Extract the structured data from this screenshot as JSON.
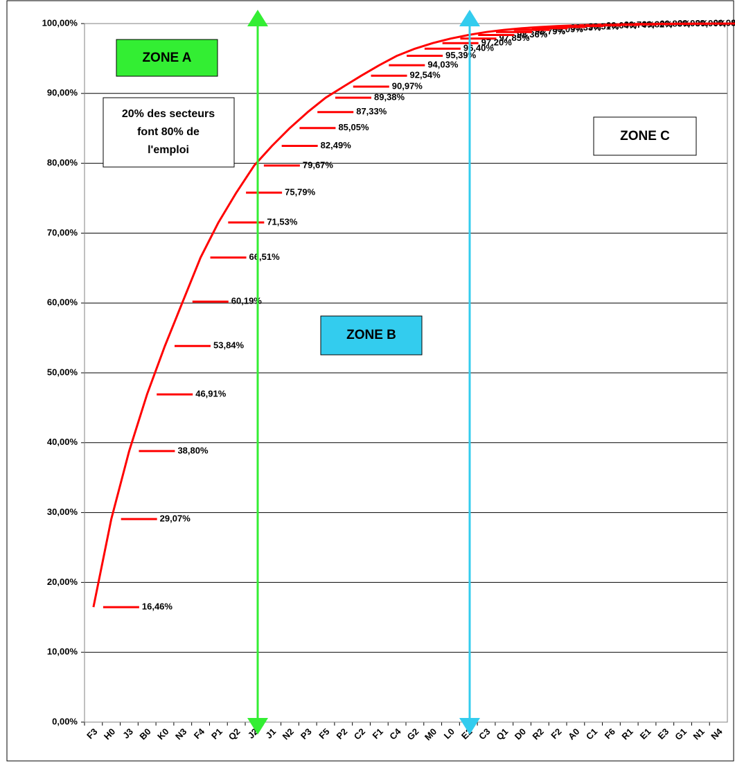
{
  "chart_data": {
    "type": "line",
    "categories": [
      "F3",
      "H0",
      "J3",
      "B0",
      "K0",
      "N3",
      "F4",
      "P1",
      "Q2",
      "J2",
      "J1",
      "N2",
      "P3",
      "F5",
      "P2",
      "C2",
      "F1",
      "C4",
      "G2",
      "M0",
      "L0",
      "E2",
      "C3",
      "Q1",
      "D0",
      "R2",
      "F2",
      "A0",
      "C1",
      "F6",
      "R1",
      "E1",
      "E3",
      "G1",
      "N1",
      "N4"
    ],
    "values": [
      16.46,
      29.07,
      38.8,
      46.91,
      53.84,
      60.19,
      66.51,
      71.53,
      75.79,
      79.67,
      82.49,
      85.05,
      87.33,
      89.38,
      90.97,
      92.54,
      94.03,
      95.39,
      96.4,
      97.2,
      97.85,
      98.36,
      98.79,
      99.09,
      99.33,
      99.51,
      99.64,
      99.74,
      99.82,
      99.88,
      99.93,
      99.96,
      99.98,
      99.99,
      100.0,
      100.0
    ],
    "value_labels": [
      "16,46%",
      "29,07%",
      "38,80%",
      "46,91%",
      "53,84%",
      "60,19%",
      "66,51%",
      "71,53%",
      "75,79%",
      "79,67%",
      "82,49%",
      "85,05%",
      "87,33%",
      "89,38%",
      "90,97%",
      "92,54%",
      "94,03%",
      "95,39%",
      "96,40%",
      "97,20%",
      "97,85%",
      "98,36%",
      "98,79%",
      "99,09%",
      "99,33%",
      "99,51%",
      "99,64%",
      "99,74%",
      "99,82%",
      "99,88%",
      "99,93%",
      "99,96%",
      "99,98%",
      "99,99%",
      "100,00%",
      "100,00%"
    ],
    "color": "#ff0000",
    "ylim": [
      0,
      100
    ],
    "yticks": [
      {
        "value": 0,
        "label": "0,00%"
      },
      {
        "value": 10,
        "label": "10,00%"
      },
      {
        "value": 20,
        "label": "20,00%"
      },
      {
        "value": 30,
        "label": "30,00%"
      },
      {
        "value": 40,
        "label": "40,00%"
      },
      {
        "value": 50,
        "label": "50,00%"
      },
      {
        "value": 60,
        "label": "60,00%"
      },
      {
        "value": 70,
        "label": "70,00%"
      },
      {
        "value": 80,
        "label": "80,00%"
      },
      {
        "value": 90,
        "label": "90,00%"
      },
      {
        "value": 100,
        "label": "100,00%"
      }
    ],
    "grid": true,
    "annotations": [
      "ZONE A",
      "ZONE B",
      "ZONE C"
    ],
    "note_lines": [
      "20% des secteurs",
      "font 80% de",
      "l'emploi"
    ]
  }
}
